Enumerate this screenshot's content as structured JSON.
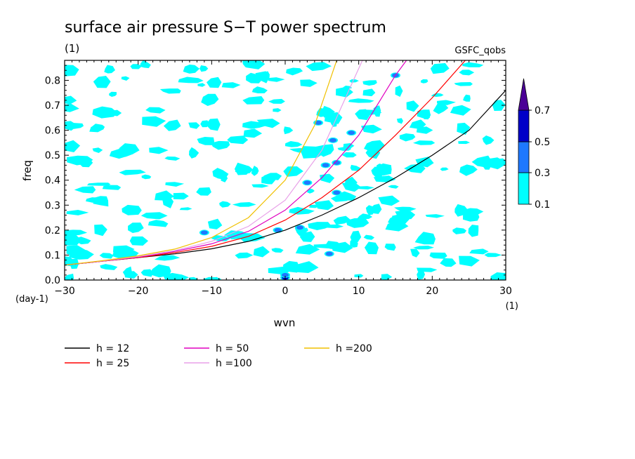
{
  "chart_data": {
    "type": "heatmap",
    "title": "surface air pressure S−T power spectrum",
    "subtitle_left": "(1)",
    "subtitle_right": "GSFC_qobs",
    "xlabel": "wvn",
    "ylabel": "freq",
    "x_unit": "(1)",
    "y_unit": "(day-1)",
    "xlim": [
      -30,
      30
    ],
    "ylim": [
      0,
      0.88
    ],
    "x_ticks": [
      -30,
      -20,
      -10,
      0,
      10,
      20,
      30
    ],
    "x_tick_labels": [
      "−30",
      "−20",
      "−10",
      "0",
      "10",
      "20",
      "30"
    ],
    "y_ticks": [
      0,
      0.1,
      0.2,
      0.3,
      0.4,
      0.5,
      0.6,
      0.7,
      0.8
    ],
    "y_tick_labels": [
      "0.0",
      "0.1",
      "0.2",
      "0.3",
      "0.4",
      "0.5",
      "0.6",
      "0.7",
      "0.8"
    ],
    "colorbar": {
      "levels": [
        0.1,
        0.3,
        0.5,
        0.7
      ],
      "level_labels": [
        "0.1",
        "0.3",
        "0.5",
        "0.7"
      ],
      "colors": [
        "#00ffff",
        "#1e78ff",
        "#0000c8",
        "#4b0096"
      ]
    },
    "contour_blobs": [
      {
        "x": 0,
        "y": 0.01,
        "level": 2
      },
      {
        "x": 0,
        "y": 0.02,
        "level": 1
      },
      {
        "x": 6,
        "y": 0.105,
        "level": 1
      },
      {
        "x": 4.5,
        "y": 0.63,
        "level": 1
      },
      {
        "x": 7,
        "y": 0.47,
        "level": 1
      },
      {
        "x": 5.5,
        "y": 0.46,
        "level": 1
      },
      {
        "x": 7,
        "y": 0.35,
        "level": 1
      },
      {
        "x": 9,
        "y": 0.59,
        "level": 1
      },
      {
        "x": 15,
        "y": 0.82,
        "level": 1
      },
      {
        "x": 3,
        "y": 0.39,
        "level": 1
      },
      {
        "x": 2,
        "y": 0.21,
        "level": 1
      },
      {
        "x": -11,
        "y": 0.19,
        "level": 1
      },
      {
        "x": -1,
        "y": 0.2,
        "level": 1
      },
      {
        "x": 6.5,
        "y": 0.56,
        "level": 1
      }
    ],
    "series": [
      {
        "name": "h = 12",
        "h": 12,
        "color": "#000000",
        "x": [
          -30,
          -25,
          -20,
          -15,
          -10,
          -5,
          0,
          5,
          10,
          15,
          20,
          25,
          30
        ],
        "y": [
          0.06,
          0.075,
          0.09,
          0.105,
          0.125,
          0.155,
          0.2,
          0.26,
          0.33,
          0.41,
          0.5,
          0.6,
          0.76
        ]
      },
      {
        "name": "h = 25",
        "h": 25,
        "color": "#ff0000",
        "x": [
          -30,
          -25,
          -20,
          -15,
          -10,
          -5,
          0,
          5,
          10,
          15,
          20,
          24.5
        ],
        "y": [
          0.06,
          0.075,
          0.09,
          0.11,
          0.135,
          0.175,
          0.24,
          0.33,
          0.44,
          0.58,
          0.73,
          0.88
        ]
      },
      {
        "name": "h = 50",
        "h": 50,
        "color": "#e000c0",
        "x": [
          -30,
          -25,
          -20,
          -15,
          -10,
          -5,
          0,
          5,
          10,
          15,
          16.5
        ],
        "y": [
          0.06,
          0.075,
          0.092,
          0.115,
          0.145,
          0.195,
          0.28,
          0.41,
          0.58,
          0.82,
          0.88
        ]
      },
      {
        "name": "h =100",
        "h": 100,
        "color": "#e8a0e8",
        "x": [
          -30,
          -25,
          -20,
          -15,
          -10,
          -5,
          0,
          5,
          10.5
        ],
        "y": [
          0.06,
          0.076,
          0.094,
          0.118,
          0.155,
          0.215,
          0.32,
          0.52,
          0.88
        ]
      },
      {
        "name": "h =200",
        "h": 200,
        "color": "#f0c000",
        "x": [
          -30,
          -25,
          -20,
          -15,
          -10,
          -5,
          0,
          4,
          7
        ],
        "y": [
          0.06,
          0.077,
          0.097,
          0.124,
          0.17,
          0.25,
          0.4,
          0.62,
          0.88
        ]
      }
    ]
  }
}
